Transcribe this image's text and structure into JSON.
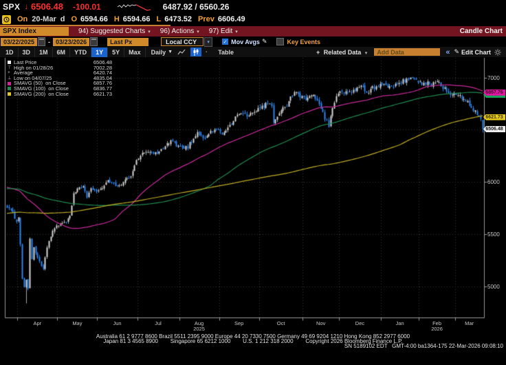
{
  "icons": {
    "down_arrow": "↓",
    "dropdown": "▾",
    "dropdown_big": "▼",
    "check": "✓",
    "pencil": "✎",
    "chevrons": "«",
    "plus": "+",
    "high_marker": "⊤",
    "avg_marker": "+",
    "low_marker": "⊥"
  },
  "quote_bar": {
    "ticker": "SPX",
    "last": "6506.48",
    "change": "-100.01",
    "bid_ask": "6487.92 / 6560.26"
  },
  "session_bar": {
    "on": "On",
    "date": "20-Mar",
    "freq": "d",
    "o_label": "O",
    "open": "6594.66",
    "h_label": "H",
    "high": "6594.66",
    "l_label": "L",
    "low": "6473.52",
    "prev_label": "Prev",
    "prev": "6606.49"
  },
  "menu_bar": {
    "security": "SPX Index",
    "items": [
      {
        "label": "94) Suggested Charts"
      },
      {
        "label": "96) Actions"
      },
      {
        "label": "97) Edit"
      }
    ],
    "chart_type": "Candle Chart"
  },
  "toolbar": {
    "date_from": "03/22/2025",
    "separator": "-",
    "date_to": "03/23/2026",
    "price_field": "Last Px",
    "currency": "Local CCY",
    "mov_avgs": "Mov Avgs",
    "key_events": "Key Events"
  },
  "range_bar": {
    "ranges": [
      "1D",
      "3D",
      "1M",
      "6M",
      "YTD",
      "1Y",
      "5Y",
      "Max"
    ],
    "selected": "1Y",
    "period": "Daily",
    "table": "Table",
    "related_data": "Related Data",
    "add_data_placeholder": "Add Data",
    "edit_chart": "Edit Chart"
  },
  "legend": {
    "rows": [
      {
        "marker": "square",
        "color": "#ededed",
        "label": "Last Price",
        "value": "6506.48"
      },
      {
        "marker": "high",
        "color": "#c8c8c8",
        "label": "High on 01/28/26",
        "value": "7002.28"
      },
      {
        "marker": "avg",
        "color": "#c8c8c8",
        "label": "Average",
        "value": "6420.74"
      },
      {
        "marker": "low",
        "color": "#c8c8c8",
        "label": "Low on 04/07/25",
        "value": "4835.04"
      },
      {
        "marker": "square",
        "color": "#d6219c",
        "label": "SMAVG (50)  on Close",
        "value": "6857.76"
      },
      {
        "marker": "square",
        "color": "#1f8a50",
        "label": "SMAVG (100)  on Close",
        "value": "6836.77"
      },
      {
        "marker": "square",
        "color": "#e3c520",
        "label": "SMAVG (200)  on Close",
        "value": "6621.73"
      }
    ]
  },
  "footer": {
    "line1": "Australia 61 2 9777 8600 Brazil 5511 2395 9000 Europe 44 20 7330 7500 Germany 49 69 9204 1210 Hong Kong 852 2977 6000",
    "line2": "Japan 81 3 4565 8900        Singapore 65 6212 1000        U.S. 1 212 318 2000        Copyright 2026 Bloomberg Finance L.P.",
    "line3": "SN 5189102 EDT   GMT-4:00 ba1364-175 22-Mar-2026 09:08:10"
  },
  "chart_data": {
    "type": "candlestick",
    "symbol": "SPX Index",
    "range": {
      "start": "03/22/2025",
      "end": "03/23/2026"
    },
    "stats": {
      "last": 6506.48,
      "high": 7002.28,
      "high_date": "01/28/26",
      "average": 6420.74,
      "low": 4835.04,
      "low_date": "04/07/25",
      "smavg50": 6857.76,
      "smavg100": 6836.77,
      "smavg200": 6621.73,
      "open": 6594.66,
      "day_high": 6594.66,
      "day_low": 6473.52,
      "prev_close": 6606.49
    },
    "y_axis": {
      "ticks": [
        7000,
        6000,
        5500,
        5000
      ],
      "gridlines": [
        7000,
        6500,
        6000,
        5500,
        5000
      ],
      "min": 4700,
      "max": 7190
    },
    "x_axis": {
      "months": [
        "Apr",
        "May",
        "Jun",
        "Jul",
        "Aug",
        "Sep",
        "Oct",
        "Nov",
        "Dec",
        "Jan",
        "Feb",
        "Mar"
      ],
      "month_trading_days": [
        6,
        21,
        21,
        21,
        22,
        21,
        21,
        23,
        19,
        22,
        20,
        19,
        15
      ],
      "years": [
        {
          "label": "2025",
          "month": "Aug"
        },
        {
          "label": "2026",
          "month": "Feb"
        }
      ]
    },
    "num_days": 251,
    "close_anchors": [
      [
        0,
        5767
      ],
      [
        3,
        5712
      ],
      [
        5,
        5612
      ],
      [
        6,
        5671
      ],
      [
        7,
        5396
      ],
      [
        8,
        5074
      ],
      [
        9,
        5000
      ],
      [
        10,
        5062
      ],
      [
        11,
        4983
      ],
      [
        12,
        5457
      ],
      [
        13,
        5268
      ],
      [
        14,
        5363
      ],
      [
        16,
        5276
      ],
      [
        19,
        5158
      ],
      [
        21,
        5376
      ],
      [
        24,
        5529
      ],
      [
        26,
        5569
      ],
      [
        28,
        5604
      ],
      [
        31,
        5607
      ],
      [
        33,
        5660
      ],
      [
        35,
        5886
      ],
      [
        38,
        5940
      ],
      [
        40,
        5963
      ],
      [
        42,
        5842
      ],
      [
        44,
        5922
      ],
      [
        47,
        5912
      ],
      [
        51,
        5970
      ],
      [
        53,
        6000
      ],
      [
        57,
        5977
      ],
      [
        60,
        5982
      ],
      [
        63,
        6025
      ],
      [
        66,
        6092
      ],
      [
        68,
        6205
      ],
      [
        71,
        6279
      ],
      [
        75,
        6280
      ],
      [
        79,
        6264
      ],
      [
        83,
        6359
      ],
      [
        87,
        6390
      ],
      [
        90,
        6339
      ],
      [
        92,
        6330
      ],
      [
        95,
        6340
      ],
      [
        97,
        6389
      ],
      [
        100,
        6469
      ],
      [
        103,
        6411
      ],
      [
        106,
        6467
      ],
      [
        110,
        6501
      ],
      [
        113,
        6448
      ],
      [
        116,
        6513
      ],
      [
        120,
        6615
      ],
      [
        124,
        6664
      ],
      [
        127,
        6638
      ],
      [
        131,
        6688
      ],
      [
        136,
        6740
      ],
      [
        139,
        6735
      ],
      [
        140,
        6552
      ],
      [
        143,
        6671
      ],
      [
        147,
        6735
      ],
      [
        151,
        6875
      ],
      [
        154,
        6822
      ],
      [
        158,
        6796
      ],
      [
        161,
        6832
      ],
      [
        164,
        6737
      ],
      [
        167,
        6617
      ],
      [
        169,
        6539
      ],
      [
        172,
        6766
      ],
      [
        174,
        6849
      ],
      [
        179,
        6849
      ],
      [
        183,
        6886
      ],
      [
        186,
        6942
      ],
      [
        189,
        6848
      ],
      [
        192,
        6901
      ],
      [
        196,
        6928
      ],
      [
        197,
        6944
      ],
      [
        200,
        6890
      ],
      [
        204,
        6920
      ],
      [
        208,
        6975
      ],
      [
        212,
        6990
      ],
      [
        214,
        6985
      ],
      [
        216,
        6940
      ],
      [
        219,
        6960
      ],
      [
        223,
        6935
      ],
      [
        227,
        6955
      ],
      [
        230,
        6890
      ],
      [
        233,
        6830
      ],
      [
        237,
        6850
      ],
      [
        240,
        6790
      ],
      [
        243,
        6740
      ],
      [
        245,
        6690
      ],
      [
        247,
        6650
      ],
      [
        248,
        6640
      ],
      [
        249,
        6606.49
      ],
      [
        250,
        6506.48
      ]
    ],
    "prehistory_anchors": [
      [
        0,
        5290
      ],
      [
        30,
        5430
      ],
      [
        50,
        5186
      ],
      [
        60,
        5520
      ],
      [
        80,
        5630
      ],
      [
        100,
        5750
      ],
      [
        120,
        5870
      ],
      [
        140,
        6090
      ],
      [
        155,
        5910
      ],
      [
        170,
        6144
      ],
      [
        185,
        5955
      ],
      [
        195,
        5670
      ],
      [
        199,
        5740
      ]
    ],
    "special_candles": {
      "10": {
        "low": 4835.04
      },
      "214": {
        "high": 7002.28
      },
      "249": {
        "close": 6606.49
      },
      "250": {
        "open": 6594.66,
        "high": 6594.66,
        "low": 6473.52,
        "close": 6506.48
      }
    },
    "series": [
      {
        "name": "SMAVG (50) on Close",
        "window": 50,
        "color": "#c92a9a"
      },
      {
        "name": "SMAVG (100) on Close",
        "window": 100,
        "color": "#1f8a50"
      },
      {
        "name": "SMAVG (200) on Close",
        "window": 200,
        "color": "#bfae25"
      }
    ],
    "colors": {
      "up": "#d9d9d9",
      "down": "#2e86f0",
      "wick": "#a8a8a8",
      "grid": "#3a3a3a",
      "axis": "#9a9a9a",
      "background": "#000000"
    },
    "badges": [
      {
        "text": "6836.77",
        "value": 6836.77,
        "bg": "#19a35a",
        "fg": "#00331a"
      },
      {
        "text": "6857.76",
        "value": 6857.76,
        "bg": "#e414a2",
        "fg": "#2d001f"
      },
      {
        "text": "6621.73",
        "value": 6621.73,
        "bg": "#e8cb16",
        "fg": "#332c00"
      },
      {
        "text": "6506.48",
        "value": 6506.48,
        "bg": "#ededed",
        "fg": "#111111"
      }
    ]
  }
}
